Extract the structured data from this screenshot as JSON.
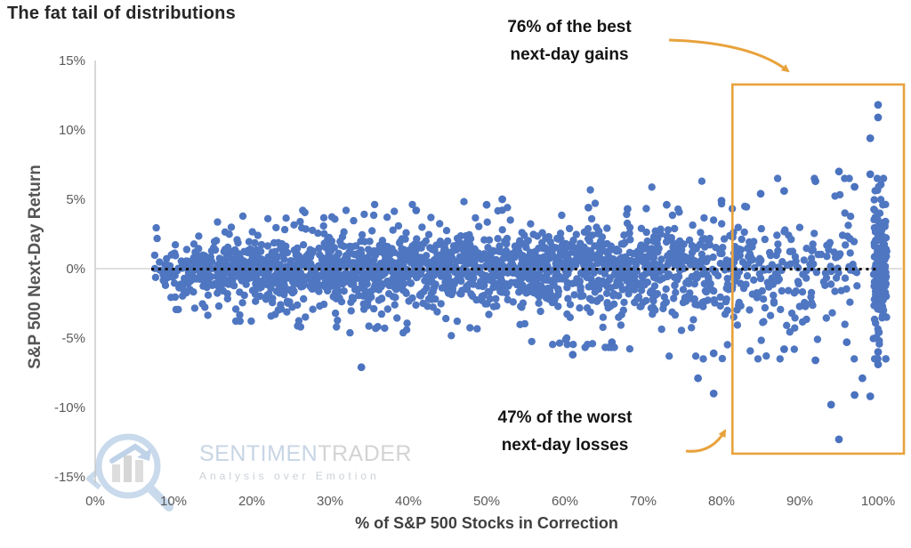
{
  "title": "The fat tail of distributions",
  "watermark": {
    "brand_primary": "SENTIMEN",
    "brand_secondary": "TRADER",
    "tagline": "Analysis over Emotion",
    "logo_color": "#c7d8ea"
  },
  "chart_data": {
    "type": "scatter",
    "title": "The fat tail of distributions",
    "xlabel": "% of S&P 500 Stocks in Correction",
    "ylabel": "S&P 500 Next-Day Return",
    "xlim": [
      0,
      103
    ],
    "ylim": [
      -15,
      15
    ],
    "grid": "zero-line-only",
    "point_color": "#4a72bf",
    "axis_color": "#c6c6c6",
    "x_axis": {
      "ticks": [
        {
          "value": 0,
          "label": "0%"
        },
        {
          "value": 10,
          "label": "10%"
        },
        {
          "value": 20,
          "label": "20%"
        },
        {
          "value": 30,
          "label": "30%"
        },
        {
          "value": 40,
          "label": "40%"
        },
        {
          "value": 50,
          "label": "50%"
        },
        {
          "value": 60,
          "label": "60%"
        },
        {
          "value": 70,
          "label": "70%"
        },
        {
          "value": 80,
          "label": "80%"
        },
        {
          "value": 90,
          "label": "90%"
        },
        {
          "value": 100,
          "label": "100%"
        }
      ]
    },
    "y_axis": {
      "ticks": [
        {
          "value": 15,
          "label": "15%"
        },
        {
          "value": 10,
          "label": "10%"
        },
        {
          "value": 5,
          "label": "5%"
        },
        {
          "value": 0,
          "label": "0%"
        },
        {
          "value": -5,
          "label": "-5%"
        },
        {
          "value": -10,
          "label": "-10%"
        },
        {
          "value": -15,
          "label": "-15%"
        }
      ]
    },
    "zero_line": {
      "y": 0,
      "style": "dotted",
      "color": "#121212"
    },
    "highlight_box": {
      "x_min": 81.4,
      "x_max": 103.3,
      "y_min": -13.33,
      "y_max": 13.27,
      "color": "#e8a23c"
    },
    "annotations": [
      {
        "id": "gains",
        "lines": [
          "76% of the best",
          "next-day gains"
        ],
        "arrow_color": "#e8a23c"
      },
      {
        "id": "losses",
        "lines": [
          "47% of the worst",
          "next-day losses"
        ],
        "arrow_color": "#e8a23c"
      }
    ],
    "point_cloud": {
      "seed": 7,
      "x_min": 7.6,
      "bin_width": 5,
      "mean": -0.05,
      "mix_wide_fraction": 0.18,
      "mix_wide_scale": 2.4,
      "negative_skew": 1.12,
      "bins": [
        {
          "x": 10,
          "count": 70,
          "std": 0.7
        },
        {
          "x": 15,
          "count": 130,
          "std": 0.8
        },
        {
          "x": 20,
          "count": 150,
          "std": 0.9
        },
        {
          "x": 25,
          "count": 150,
          "std": 1.0
        },
        {
          "x": 30,
          "count": 150,
          "std": 1.0
        },
        {
          "x": 35,
          "count": 150,
          "std": 1.1
        },
        {
          "x": 40,
          "count": 150,
          "std": 1.1
        },
        {
          "x": 45,
          "count": 150,
          "std": 1.15
        },
        {
          "x": 50,
          "count": 150,
          "std": 1.2
        },
        {
          "x": 55,
          "count": 150,
          "std": 1.25
        },
        {
          "x": 60,
          "count": 145,
          "std": 1.3
        },
        {
          "x": 65,
          "count": 140,
          "std": 1.35
        },
        {
          "x": 70,
          "count": 135,
          "std": 1.4
        },
        {
          "x": 75,
          "count": 120,
          "std": 1.5
        },
        {
          "x": 80,
          "count": 100,
          "std": 1.6
        },
        {
          "x": 85,
          "count": 70,
          "std": 1.7
        },
        {
          "x": 90,
          "count": 55,
          "std": 1.85
        },
        {
          "x": 95,
          "count": 50,
          "std": 2.0
        },
        {
          "x": 100,
          "count": 160,
          "std": 2.2
        }
      ]
    },
    "outliers": [
      [
        34,
        -7.1
      ],
      [
        61,
        -6.2
      ],
      [
        66,
        -5.3
      ],
      [
        77,
        -7.9
      ],
      [
        79,
        -6.1
      ],
      [
        79,
        -9.0
      ],
      [
        94,
        -9.8
      ],
      [
        95,
        -12.3
      ],
      [
        97,
        -9.1
      ],
      [
        98,
        -7.9
      ],
      [
        99,
        -9.2
      ],
      [
        88,
        -5.8
      ],
      [
        92,
        -6.6
      ],
      [
        100,
        -6.9
      ],
      [
        100,
        -6.0
      ],
      [
        96,
        -5.3
      ],
      [
        100,
        11.8
      ],
      [
        100,
        10.9
      ],
      [
        99,
        9.4
      ],
      [
        95,
        7.0
      ],
      [
        99,
        6.8
      ],
      [
        85,
        5.4
      ],
      [
        52,
        5.0
      ],
      [
        50,
        4.6
      ],
      [
        41,
        4.2
      ],
      [
        73,
        4.6
      ],
      [
        80,
        4.9
      ],
      [
        88,
        5.6
      ],
      [
        92,
        6.3
      ],
      [
        97,
        5.9
      ],
      [
        63,
        4.4
      ],
      [
        68,
        4.3
      ]
    ]
  }
}
